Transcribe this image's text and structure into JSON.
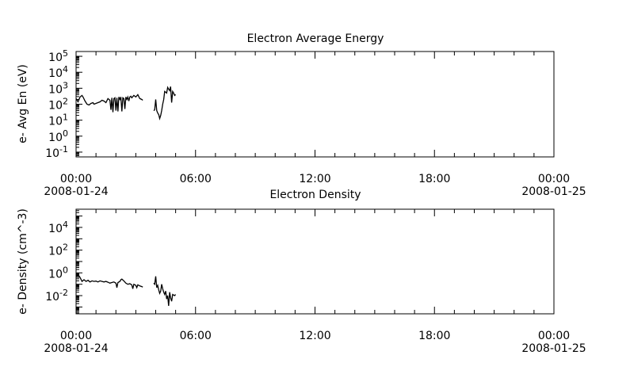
{
  "chart_data": [
    {
      "type": "line",
      "title": "Electron Average Energy",
      "ylabel": "e- Avg En (eV)",
      "xlabel": "",
      "y_scale": "log",
      "ylim_decades": [
        -1.3,
        5.3
      ],
      "yticks": [
        {
          "base": "10",
          "exp": "5",
          "decade": 5
        },
        {
          "base": "10",
          "exp": "4",
          "decade": 4
        },
        {
          "base": "10",
          "exp": "3",
          "decade": 3
        },
        {
          "base": "10",
          "exp": "2",
          "decade": 2
        },
        {
          "base": "10",
          "exp": "1",
          "decade": 1
        },
        {
          "base": "10",
          "exp": "0",
          "decade": 0
        },
        {
          "base": "10",
          "exp": "-1",
          "decade": -1
        }
      ],
      "x_range_hours": [
        0,
        24
      ],
      "xticks": [
        {
          "hour": 0,
          "time": "00:00",
          "date": "2008-01-24"
        },
        {
          "hour": 6,
          "time": "06:00",
          "date": ""
        },
        {
          "hour": 12,
          "time": "12:00",
          "date": ""
        },
        {
          "hour": 18,
          "time": "18:00",
          "date": ""
        },
        {
          "hour": 24,
          "time": "00:00",
          "date": "2008-01-25"
        }
      ],
      "grid": false,
      "series": [
        {
          "x_hours": [
            0.0,
            0.1,
            0.2,
            0.3,
            0.35,
            0.45,
            0.55,
            0.65,
            0.75,
            0.85,
            0.9,
            1.0,
            1.1,
            1.2,
            1.3,
            1.4,
            1.5,
            1.6,
            1.7,
            1.75,
            1.8,
            1.85,
            1.9,
            1.95,
            2.0,
            2.05,
            2.1,
            2.15,
            2.2,
            2.25,
            2.3,
            2.35,
            2.4,
            2.45,
            2.5,
            2.55,
            2.6,
            2.65,
            2.7,
            2.75,
            2.8,
            2.9,
            3.0,
            3.1,
            3.2,
            3.3,
            3.35
          ],
          "log10_values": [
            2.35,
            2.15,
            2.45,
            2.55,
            2.45,
            2.2,
            2.0,
            1.95,
            2.05,
            2.1,
            2.0,
            2.05,
            2.1,
            2.15,
            2.25,
            2.2,
            2.1,
            2.35,
            2.25,
            1.65,
            2.4,
            1.5,
            2.35,
            2.4,
            1.6,
            2.4,
            1.55,
            2.45,
            2.3,
            2.45,
            1.55,
            2.4,
            2.35,
            1.7,
            2.45,
            2.3,
            2.45,
            2.2,
            2.45,
            2.5,
            2.4,
            2.55,
            2.45,
            2.6,
            2.35,
            2.3,
            2.25
          ]
        },
        {
          "x_hours": [
            3.9,
            3.95,
            4.0,
            4.05,
            4.1,
            4.15,
            4.2,
            4.25,
            4.3,
            4.35,
            4.4,
            4.45,
            4.5,
            4.55,
            4.6,
            4.65,
            4.7,
            4.75,
            4.8,
            4.85,
            4.9,
            4.95,
            5.0
          ],
          "log10_values": [
            1.6,
            1.65,
            2.3,
            1.6,
            1.45,
            1.35,
            1.1,
            1.3,
            1.6,
            2.0,
            2.3,
            2.8,
            2.75,
            2.7,
            3.05,
            2.95,
            2.85,
            3.1,
            2.1,
            2.8,
            2.7,
            2.55,
            2.6
          ]
        }
      ]
    },
    {
      "type": "line",
      "title": "Electron Density",
      "ylabel": "e- Density (cm^-3)",
      "xlabel": "",
      "y_scale": "log",
      "ylim_decades": [
        -3.6,
        5.6
      ],
      "yticks": [
        {
          "base": "10",
          "exp": "4",
          "decade": 4
        },
        {
          "base": "10",
          "exp": "2",
          "decade": 2
        },
        {
          "base": "10",
          "exp": "0",
          "decade": 0
        },
        {
          "base": "10",
          "exp": "-2",
          "decade": -2
        }
      ],
      "x_range_hours": [
        0,
        24
      ],
      "xticks": [
        {
          "hour": 0,
          "time": "00:00",
          "date": "2008-01-24"
        },
        {
          "hour": 6,
          "time": "06:00",
          "date": ""
        },
        {
          "hour": 12,
          "time": "12:00",
          "date": ""
        },
        {
          "hour": 18,
          "time": "18:00",
          "date": ""
        },
        {
          "hour": 24,
          "time": "00:00",
          "date": "2008-01-25"
        }
      ],
      "grid": false,
      "series": [
        {
          "x_hours": [
            0.0,
            0.1,
            0.2,
            0.3,
            0.4,
            0.5,
            0.6,
            0.7,
            0.8,
            0.9,
            1.0,
            1.1,
            1.2,
            1.3,
            1.4,
            1.5,
            1.6,
            1.7,
            1.8,
            1.9,
            2.0,
            2.05,
            2.1,
            2.2,
            2.25,
            2.3,
            2.4,
            2.5,
            2.6,
            2.7,
            2.8,
            2.85,
            2.9,
            3.0,
            3.05,
            3.1,
            3.2,
            3.3,
            3.35
          ],
          "log10_values": [
            -0.3,
            -0.15,
            -0.4,
            -0.75,
            -0.6,
            -0.75,
            -0.65,
            -0.8,
            -0.7,
            -0.75,
            -0.72,
            -0.8,
            -0.7,
            -0.75,
            -0.8,
            -0.75,
            -0.82,
            -0.9,
            -0.85,
            -0.8,
            -0.9,
            -1.3,
            -0.85,
            -0.75,
            -0.6,
            -0.55,
            -0.7,
            -0.9,
            -1.0,
            -0.95,
            -1.05,
            -1.4,
            -1.0,
            -1.1,
            -1.3,
            -1.05,
            -1.15,
            -1.2,
            -1.25
          ]
        },
        {
          "x_hours": [
            3.9,
            3.95,
            4.0,
            4.05,
            4.1,
            4.15,
            4.2,
            4.25,
            4.3,
            4.35,
            4.4,
            4.45,
            4.5,
            4.55,
            4.6,
            4.65,
            4.7,
            4.75,
            4.8,
            4.85,
            4.9,
            4.95,
            5.0
          ],
          "log10_values": [
            -0.9,
            -1.0,
            -0.3,
            -1.3,
            -1.1,
            -1.5,
            -1.8,
            -1.6,
            -1.0,
            -1.4,
            -1.7,
            -1.9,
            -1.6,
            -2.3,
            -2.0,
            -2.9,
            -1.7,
            -2.2,
            -2.5,
            -1.9,
            -1.95,
            -2.0,
            -1.9
          ]
        }
      ]
    }
  ]
}
